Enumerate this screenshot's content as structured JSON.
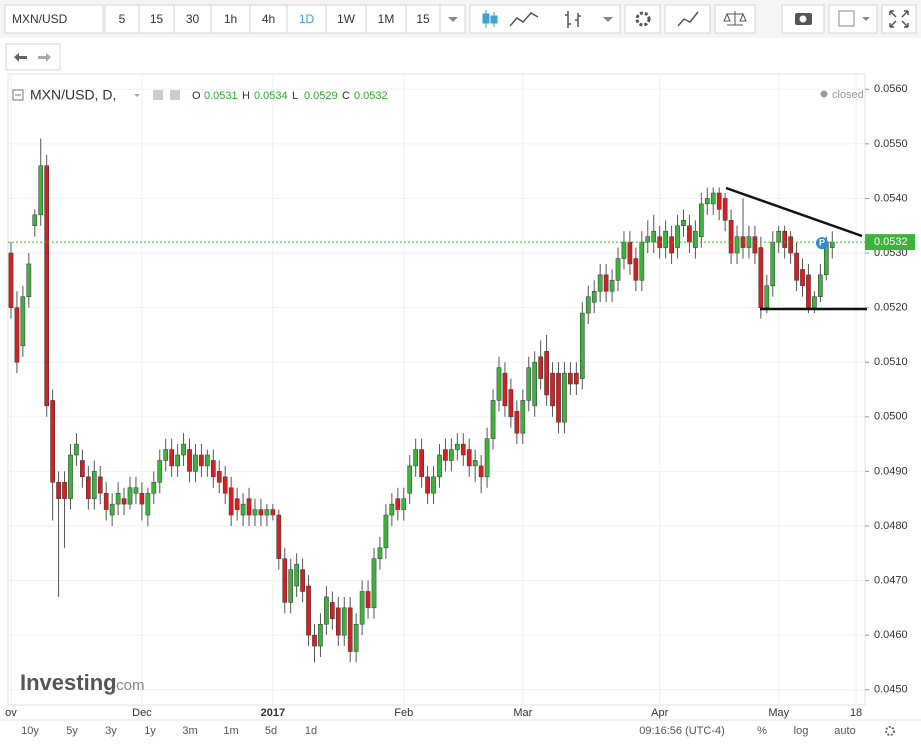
{
  "toolbar": {
    "symbol": "MXN/USD",
    "intervals": [
      "5",
      "15",
      "30",
      "1h",
      "4h",
      "1D",
      "1W",
      "1M",
      "15"
    ],
    "active_interval_index": 5
  },
  "chart_data": {
    "type": "candlestick",
    "title": "MXN/USD, D,",
    "ohlc": [
      {
        "key": "O",
        "value": "0.0531"
      },
      {
        "key": "H",
        "value": "0.0534"
      },
      {
        "key": "L",
        "value": "0.0529"
      },
      {
        "key": "C",
        "value": "0.0532"
      }
    ],
    "status": "closed",
    "marker": "P",
    "colors": {
      "up": "#3cb43c",
      "down": "#d71f1f"
    },
    "last_price": {
      "value": 0.0532,
      "label": "0.0532"
    },
    "ylim": [
      0.04472,
      0.05628
    ],
    "yticks": [
      {
        "value": 0.045,
        "label": "0.0450"
      },
      {
        "value": 0.046,
        "label": "0.0460"
      },
      {
        "value": 0.047,
        "label": "0.0470"
      },
      {
        "value": 0.048,
        "label": "0.0480"
      },
      {
        "value": 0.049,
        "label": "0.0490"
      },
      {
        "value": 0.05,
        "label": "0.0500"
      },
      {
        "value": 0.051,
        "label": "0.0510"
      },
      {
        "value": 0.052,
        "label": "0.0520"
      },
      {
        "value": 0.053,
        "label": "0.0530"
      },
      {
        "value": 0.054,
        "label": "0.0540"
      },
      {
        "value": 0.055,
        "label": "0.0550"
      },
      {
        "value": 0.056,
        "label": "0.0560"
      }
    ],
    "xlim": [
      -0.5,
      143.5
    ],
    "xticks": [
      {
        "value": 0,
        "label": "ov"
      },
      {
        "value": 22,
        "label": "Dec"
      },
      {
        "value": 44,
        "label": "2017"
      },
      {
        "value": 66,
        "label": "Feb"
      },
      {
        "value": 86,
        "label": "Mar"
      },
      {
        "value": 109,
        "label": "Apr"
      },
      {
        "value": 129,
        "label": "May"
      },
      {
        "value": 142,
        "label": "18"
      }
    ],
    "candles": [
      [
        0.053,
        0.0532,
        0.0518,
        0.052
      ],
      [
        0.052,
        0.0523,
        0.0508,
        0.051
      ],
      [
        0.0513,
        0.0524,
        0.0511,
        0.0522
      ],
      [
        0.0522,
        0.053,
        0.052,
        0.0528
      ],
      [
        0.0535,
        0.0538,
        0.0533,
        0.0537
      ],
      [
        0.0537,
        0.0551,
        0.0535,
        0.0546
      ],
      [
        0.0546,
        0.0548,
        0.05,
        0.0502
      ],
      [
        0.0503,
        0.0505,
        0.0481,
        0.0488
      ],
      [
        0.0488,
        0.049,
        0.0467,
        0.0485
      ],
      [
        0.0488,
        0.049,
        0.0476,
        0.0485
      ],
      [
        0.0485,
        0.0495,
        0.0483,
        0.0493
      ],
      [
        0.0493,
        0.0497,
        0.0491,
        0.0495
      ],
      [
        0.0492,
        0.0494,
        0.0487,
        0.0489
      ],
      [
        0.0489,
        0.0491,
        0.0483,
        0.0485
      ],
      [
        0.0485,
        0.0492,
        0.0483,
        0.049
      ],
      [
        0.0489,
        0.0491,
        0.0484,
        0.0486
      ],
      [
        0.0486,
        0.0488,
        0.0481,
        0.0483
      ],
      [
        0.0482,
        0.0486,
        0.048,
        0.0484
      ],
      [
        0.0484,
        0.0488,
        0.0482,
        0.0486
      ],
      [
        0.0485,
        0.0487,
        0.0482,
        0.0484
      ],
      [
        0.0484,
        0.0489,
        0.0483,
        0.0487
      ],
      [
        0.0486,
        0.0489,
        0.0484,
        0.0487
      ],
      [
        0.0486,
        0.0488,
        0.0481,
        0.0484
      ],
      [
        0.0482,
        0.0487,
        0.048,
        0.0486
      ],
      [
        0.0486,
        0.049,
        0.0484,
        0.0488
      ],
      [
        0.0488,
        0.0494,
        0.0486,
        0.0492
      ],
      [
        0.0492,
        0.0496,
        0.049,
        0.0494
      ],
      [
        0.0494,
        0.0496,
        0.0489,
        0.0491
      ],
      [
        0.0491,
        0.0495,
        0.0489,
        0.0493
      ],
      [
        0.0493,
        0.0497,
        0.0491,
        0.0495
      ],
      [
        0.0494,
        0.0496,
        0.0488,
        0.049
      ],
      [
        0.049,
        0.0495,
        0.0488,
        0.0493
      ],
      [
        0.0493,
        0.0495,
        0.0489,
        0.0491
      ],
      [
        0.0491,
        0.0494,
        0.0489,
        0.0493
      ],
      [
        0.0492,
        0.0494,
        0.0487,
        0.0489
      ],
      [
        0.049,
        0.0492,
        0.0486,
        0.0488
      ],
      [
        0.0489,
        0.0491,
        0.0484,
        0.0486
      ],
      [
        0.0487,
        0.0489,
        0.048,
        0.0482
      ],
      [
        0.0485,
        0.0487,
        0.0481,
        0.0483
      ],
      [
        0.0482,
        0.0486,
        0.048,
        0.0484
      ],
      [
        0.0485,
        0.0487,
        0.048,
        0.0482
      ],
      [
        0.0482,
        0.0485,
        0.048,
        0.0483
      ],
      [
        0.0483,
        0.0485,
        0.048,
        0.0482
      ],
      [
        0.0482,
        0.0484,
        0.048,
        0.0483
      ],
      [
        0.0483,
        0.0484,
        0.0481,
        0.0482
      ],
      [
        0.0482,
        0.0483,
        0.0472,
        0.0474
      ],
      [
        0.0474,
        0.0476,
        0.0464,
        0.0466
      ],
      [
        0.0466,
        0.0474,
        0.0464,
        0.0472
      ],
      [
        0.0469,
        0.0475,
        0.0467,
        0.0473
      ],
      [
        0.0472,
        0.0474,
        0.0466,
        0.0468
      ],
      [
        0.0469,
        0.0471,
        0.0458,
        0.046
      ],
      [
        0.046,
        0.0462,
        0.0455,
        0.0458
      ],
      [
        0.0458,
        0.0464,
        0.0456,
        0.0462
      ],
      [
        0.0462,
        0.0469,
        0.046,
        0.0467
      ],
      [
        0.0466,
        0.0468,
        0.0461,
        0.0463
      ],
      [
        0.0465,
        0.0467,
        0.0458,
        0.046
      ],
      [
        0.046,
        0.0467,
        0.0458,
        0.0465
      ],
      [
        0.0465,
        0.0467,
        0.0455,
        0.0457
      ],
      [
        0.0457,
        0.0464,
        0.0455,
        0.0462
      ],
      [
        0.0462,
        0.047,
        0.046,
        0.0468
      ],
      [
        0.0468,
        0.047,
        0.0463,
        0.0465
      ],
      [
        0.0465,
        0.0476,
        0.0463,
        0.0474
      ],
      [
        0.0474,
        0.0478,
        0.0472,
        0.0476
      ],
      [
        0.0476,
        0.0484,
        0.0474,
        0.0482
      ],
      [
        0.0482,
        0.0486,
        0.048,
        0.0484
      ],
      [
        0.0485,
        0.0487,
        0.0481,
        0.0483
      ],
      [
        0.0483,
        0.0487,
        0.0481,
        0.0485
      ],
      [
        0.0486,
        0.0493,
        0.0484,
        0.0491
      ],
      [
        0.0491,
        0.0496,
        0.0489,
        0.0494
      ],
      [
        0.0494,
        0.0496,
        0.0487,
        0.0489
      ],
      [
        0.0489,
        0.0491,
        0.0484,
        0.0486
      ],
      [
        0.0486,
        0.0491,
        0.0484,
        0.0489
      ],
      [
        0.0489,
        0.0495,
        0.0487,
        0.0493
      ],
      [
        0.0494,
        0.0496,
        0.049,
        0.0492
      ],
      [
        0.0492,
        0.0496,
        0.049,
        0.0494
      ],
      [
        0.0494,
        0.0497,
        0.0492,
        0.0495
      ],
      [
        0.0495,
        0.0497,
        0.0491,
        0.0493
      ],
      [
        0.0494,
        0.0496,
        0.0489,
        0.0491
      ],
      [
        0.0491,
        0.0494,
        0.0488,
        0.0492
      ],
      [
        0.0491,
        0.0493,
        0.0486,
        0.0489
      ],
      [
        0.0489,
        0.0498,
        0.0487,
        0.0496
      ],
      [
        0.0496,
        0.0505,
        0.0494,
        0.0503
      ],
      [
        0.0503,
        0.0511,
        0.0501,
        0.0509
      ],
      [
        0.0508,
        0.051,
        0.05,
        0.0502
      ],
      [
        0.0505,
        0.0507,
        0.0498,
        0.05
      ],
      [
        0.0501,
        0.0503,
        0.0495,
        0.0497
      ],
      [
        0.0497,
        0.0505,
        0.0495,
        0.0503
      ],
      [
        0.0503,
        0.0511,
        0.0501,
        0.0509
      ],
      [
        0.0502,
        0.0512,
        0.05,
        0.051
      ],
      [
        0.0511,
        0.0514,
        0.0505,
        0.0507
      ],
      [
        0.0512,
        0.0515,
        0.0502,
        0.0504
      ],
      [
        0.0508,
        0.051,
        0.05,
        0.0502
      ],
      [
        0.0508,
        0.051,
        0.0497,
        0.0499
      ],
      [
        0.0499,
        0.051,
        0.0497,
        0.0508
      ],
      [
        0.0508,
        0.051,
        0.0504,
        0.0506
      ],
      [
        0.0508,
        0.051,
        0.0504,
        0.0506
      ],
      [
        0.0507,
        0.0521,
        0.0505,
        0.0519
      ],
      [
        0.0519,
        0.0524,
        0.0517,
        0.0522
      ],
      [
        0.0521,
        0.0525,
        0.0519,
        0.0523
      ],
      [
        0.0523,
        0.0528,
        0.0521,
        0.0526
      ],
      [
        0.0526,
        0.0528,
        0.0521,
        0.0523
      ],
      [
        0.0523,
        0.0527,
        0.0521,
        0.0525
      ],
      [
        0.0525,
        0.0531,
        0.0523,
        0.0529
      ],
      [
        0.0529,
        0.0534,
        0.0527,
        0.0532
      ],
      [
        0.0532,
        0.0534,
        0.0526,
        0.0528
      ],
      [
        0.0529,
        0.0531,
        0.0523,
        0.0525
      ],
      [
        0.0525,
        0.0534,
        0.0523,
        0.0532
      ],
      [
        0.0532,
        0.0536,
        0.053,
        0.0533
      ],
      [
        0.0532,
        0.0537,
        0.053,
        0.0534
      ],
      [
        0.0533,
        0.0535,
        0.0529,
        0.0531
      ],
      [
        0.0531,
        0.0536,
        0.0529,
        0.0534
      ],
      [
        0.0533,
        0.0535,
        0.0528,
        0.053
      ],
      [
        0.0531,
        0.0537,
        0.0529,
        0.0535
      ],
      [
        0.0535,
        0.0538,
        0.0533,
        0.0536
      ],
      [
        0.0535,
        0.0537,
        0.053,
        0.0532
      ],
      [
        0.0531,
        0.0536,
        0.0529,
        0.0534
      ],
      [
        0.0533,
        0.0541,
        0.0531,
        0.0539
      ],
      [
        0.0539,
        0.0542,
        0.0537,
        0.054
      ],
      [
        0.0539,
        0.0542,
        0.0537,
        0.0541
      ],
      [
        0.0541,
        0.0542,
        0.0536,
        0.0538
      ],
      [
        0.054,
        0.0541,
        0.0534,
        0.0536
      ],
      [
        0.0536,
        0.0538,
        0.0528,
        0.053
      ],
      [
        0.053,
        0.0535,
        0.0528,
        0.0533
      ],
      [
        0.0533,
        0.054,
        0.0529,
        0.0531
      ],
      [
        0.0531,
        0.0535,
        0.0529,
        0.0533
      ],
      [
        0.0533,
        0.0535,
        0.0528,
        0.053
      ],
      [
        0.0531,
        0.0533,
        0.0518,
        0.052
      ],
      [
        0.052,
        0.0526,
        0.0519,
        0.0524
      ],
      [
        0.0524,
        0.0534,
        0.0522,
        0.0532
      ],
      [
        0.0532,
        0.0535,
        0.053,
        0.0534
      ],
      [
        0.0534,
        0.0535,
        0.0529,
        0.0531
      ],
      [
        0.0533,
        0.0534,
        0.0528,
        0.053
      ],
      [
        0.053,
        0.0532,
        0.0523,
        0.0525
      ],
      [
        0.0527,
        0.0529,
        0.0522,
        0.0524
      ],
      [
        0.0526,
        0.0528,
        0.0519,
        0.052
      ],
      [
        0.052,
        0.0523,
        0.0519,
        0.0522
      ],
      [
        0.0522,
        0.0528,
        0.0521,
        0.0526
      ],
      [
        0.0526,
        0.0533,
        0.0525,
        0.0532
      ],
      [
        0.0531,
        0.0534,
        0.0529,
        0.0532
      ]
    ]
  },
  "watermark": {
    "brand": "Investing",
    "suffix": ".com"
  },
  "range_buttons": [
    "10y",
    "5y",
    "3y",
    "1y",
    "3m",
    "1m",
    "5d",
    "1d"
  ],
  "footer": {
    "time": "09:16:56 (UTC-4)",
    "options": [
      "%",
      "log",
      "auto"
    ]
  }
}
